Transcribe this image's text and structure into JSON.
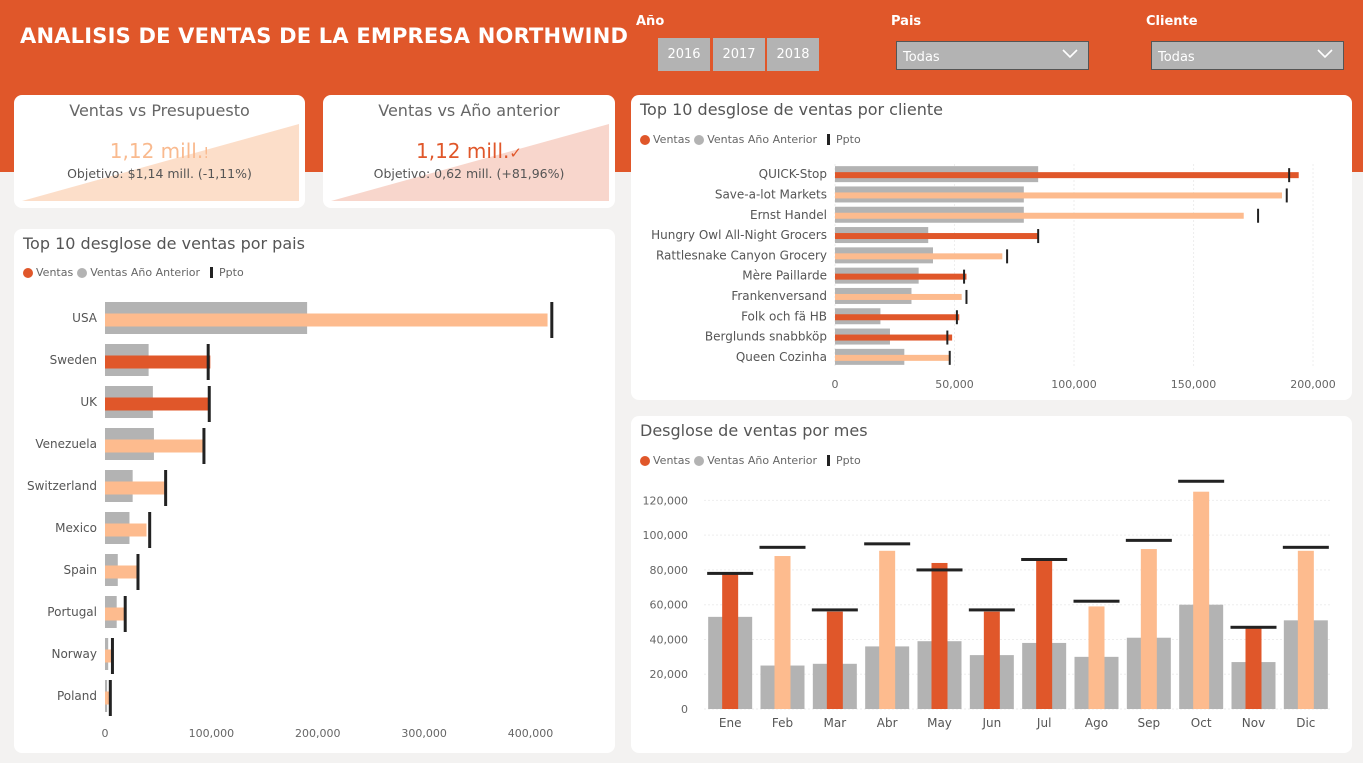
{
  "header": {
    "title": "ANALISIS DE VENTAS DE LA EMPRESA NORTHWIND",
    "filters": {
      "year_label": "Año",
      "years": [
        "2016",
        "2017",
        "2018"
      ],
      "country_label": "Pais",
      "country_value": "Todas",
      "client_label": "Cliente",
      "client_value": "Todas"
    }
  },
  "kpis": [
    {
      "title": "Ventas vs Presupuesto",
      "value": "1,12 mill.",
      "status_icon": "!",
      "objective": "Objetivo: $1,14 mill. (-1,11%)",
      "color": "#f9ba8f"
    },
    {
      "title": "Ventas vs Año anterior",
      "value": "1,12 mill.",
      "status_icon": "✓",
      "objective": "Objetivo: 0,62 mill. (+81,96%)",
      "color": "#e0572a"
    }
  ],
  "legend": {
    "ventas": "Ventas",
    "anterior": "Ventas Año Anterior",
    "ppto": "Ppto"
  },
  "colors": {
    "accent": "#e0572a",
    "light": "#fdbb8e",
    "gray": "#b3b3b3",
    "target": "#222222"
  },
  "chart_data": [
    {
      "type": "bar",
      "orientation": "horizontal",
      "title": "Top 10 desglose de ventas por pais",
      "categories": [
        "USA",
        "Sweden",
        "UK",
        "Venezuela",
        "Switzerland",
        "Mexico",
        "Spain",
        "Portugal",
        "Norway",
        "Poland"
      ],
      "series": [
        {
          "name": "Ventas",
          "values": [
            416000,
            99000,
            98000,
            93000,
            57000,
            39000,
            31000,
            18000,
            6000,
            4000
          ]
        },
        {
          "name": "Ventas Año Anterior",
          "values": [
            190000,
            41000,
            45000,
            46000,
            26000,
            23000,
            12000,
            11000,
            3000,
            2000
          ]
        },
        {
          "name": "Ppto",
          "values": [
            420000,
            97000,
            98000,
            93000,
            57000,
            42000,
            31000,
            19000,
            7000,
            5000
          ]
        }
      ],
      "highlight": [
        false,
        true,
        true,
        false,
        false,
        false,
        false,
        false,
        false,
        false
      ],
      "xlim": [
        0,
        470000
      ],
      "xticks": [
        0,
        100000,
        200000,
        300000,
        400000
      ],
      "xtick_labels": [
        "0",
        "100,000",
        "200,000",
        "300,000",
        "400,000"
      ]
    },
    {
      "type": "bar",
      "orientation": "horizontal",
      "title": "Top 10 desglose de ventas por cliente",
      "categories": [
        "QUICK-Stop",
        "Save-a-lot Markets",
        "Ernst Handel",
        "Hungry Owl All-Night Grocers",
        "Rattlesnake Canyon Grocery",
        "Mère Paillarde",
        "Frankenversand",
        "Folk och fä HB",
        "Berglunds snabbköp",
        "Queen Cozinha"
      ],
      "series": [
        {
          "name": "Ventas",
          "values": [
            194000,
            187000,
            171000,
            85000,
            70000,
            55000,
            53000,
            52000,
            49000,
            48000
          ]
        },
        {
          "name": "Ventas Año Anterior",
          "values": [
            85000,
            79000,
            79000,
            39000,
            41000,
            35000,
            32000,
            19000,
            23000,
            29000
          ]
        },
        {
          "name": "Ppto",
          "values": [
            190000,
            189000,
            177000,
            85000,
            72000,
            54000,
            55000,
            51000,
            47000,
            48000
          ]
        }
      ],
      "highlight": [
        true,
        false,
        false,
        true,
        false,
        true,
        false,
        true,
        true,
        false
      ],
      "xlim": [
        0,
        205000
      ],
      "xticks": [
        0,
        50000,
        100000,
        150000,
        200000
      ],
      "xtick_labels": [
        "0",
        "50,000",
        "100,000",
        "150,000",
        "200,000"
      ]
    },
    {
      "type": "bar",
      "orientation": "vertical",
      "title": "Desglose de ventas por mes",
      "categories": [
        "Ene",
        "Feb",
        "Mar",
        "Abr",
        "May",
        "Jun",
        "Jul",
        "Ago",
        "Sep",
        "Oct",
        "Nov",
        "Dic"
      ],
      "series": [
        {
          "name": "Ventas",
          "values": [
            78000,
            88000,
            56000,
            91000,
            84000,
            56000,
            86000,
            59000,
            92000,
            125000,
            47000,
            91000
          ]
        },
        {
          "name": "Ventas Año Anterior",
          "values": [
            53000,
            25000,
            26000,
            36000,
            39000,
            31000,
            38000,
            30000,
            41000,
            60000,
            27000,
            51000
          ]
        },
        {
          "name": "Ppto",
          "values": [
            78000,
            93000,
            57000,
            95000,
            80000,
            57000,
            86000,
            62000,
            97000,
            131000,
            47000,
            93000
          ]
        }
      ],
      "highlight": [
        true,
        false,
        true,
        false,
        true,
        true,
        true,
        false,
        false,
        false,
        true,
        false
      ],
      "ylim": [
        0,
        130000
      ],
      "yticks": [
        0,
        20000,
        40000,
        60000,
        80000,
        100000,
        120000
      ],
      "ytick_labels": [
        "0",
        "20,000",
        "40,000",
        "60,000",
        "80,000",
        "100,000",
        "120,000"
      ]
    }
  ]
}
